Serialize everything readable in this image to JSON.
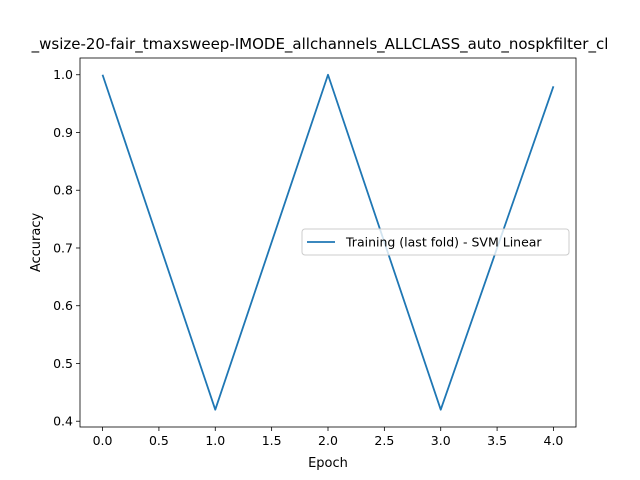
{
  "chart_data": {
    "type": "line",
    "title": "_wsize-20-fair_tmaxsweep-IMODE_allchannels_ALLCLASS_auto_nospkfilter_cl",
    "xlabel": "Epoch",
    "ylabel": "Accuracy",
    "xlim": [
      -0.2,
      4.2
    ],
    "ylim": [
      0.39,
      1.029
    ],
    "x_ticks": [
      0.0,
      0.5,
      1.0,
      1.5,
      2.0,
      2.5,
      3.0,
      3.5,
      4.0
    ],
    "x_tick_labels": [
      "0.0",
      "0.5",
      "1.0",
      "1.5",
      "2.0",
      "2.5",
      "3.0",
      "3.5",
      "4.0"
    ],
    "y_ticks": [
      0.4,
      0.5,
      0.6,
      0.7,
      0.8,
      0.9,
      1.0
    ],
    "y_tick_labels": [
      "0.4",
      "0.5",
      "0.6",
      "0.7",
      "0.8",
      "0.9",
      "1.0"
    ],
    "grid": false,
    "legend_position": "center-right",
    "series": [
      {
        "name": "Training (last fold) - SVM Linear",
        "color": "#1f77b4",
        "x": [
          0,
          1,
          2,
          3,
          4
        ],
        "y": [
          1.0,
          0.42,
          1.0,
          0.42,
          0.98
        ]
      }
    ]
  }
}
